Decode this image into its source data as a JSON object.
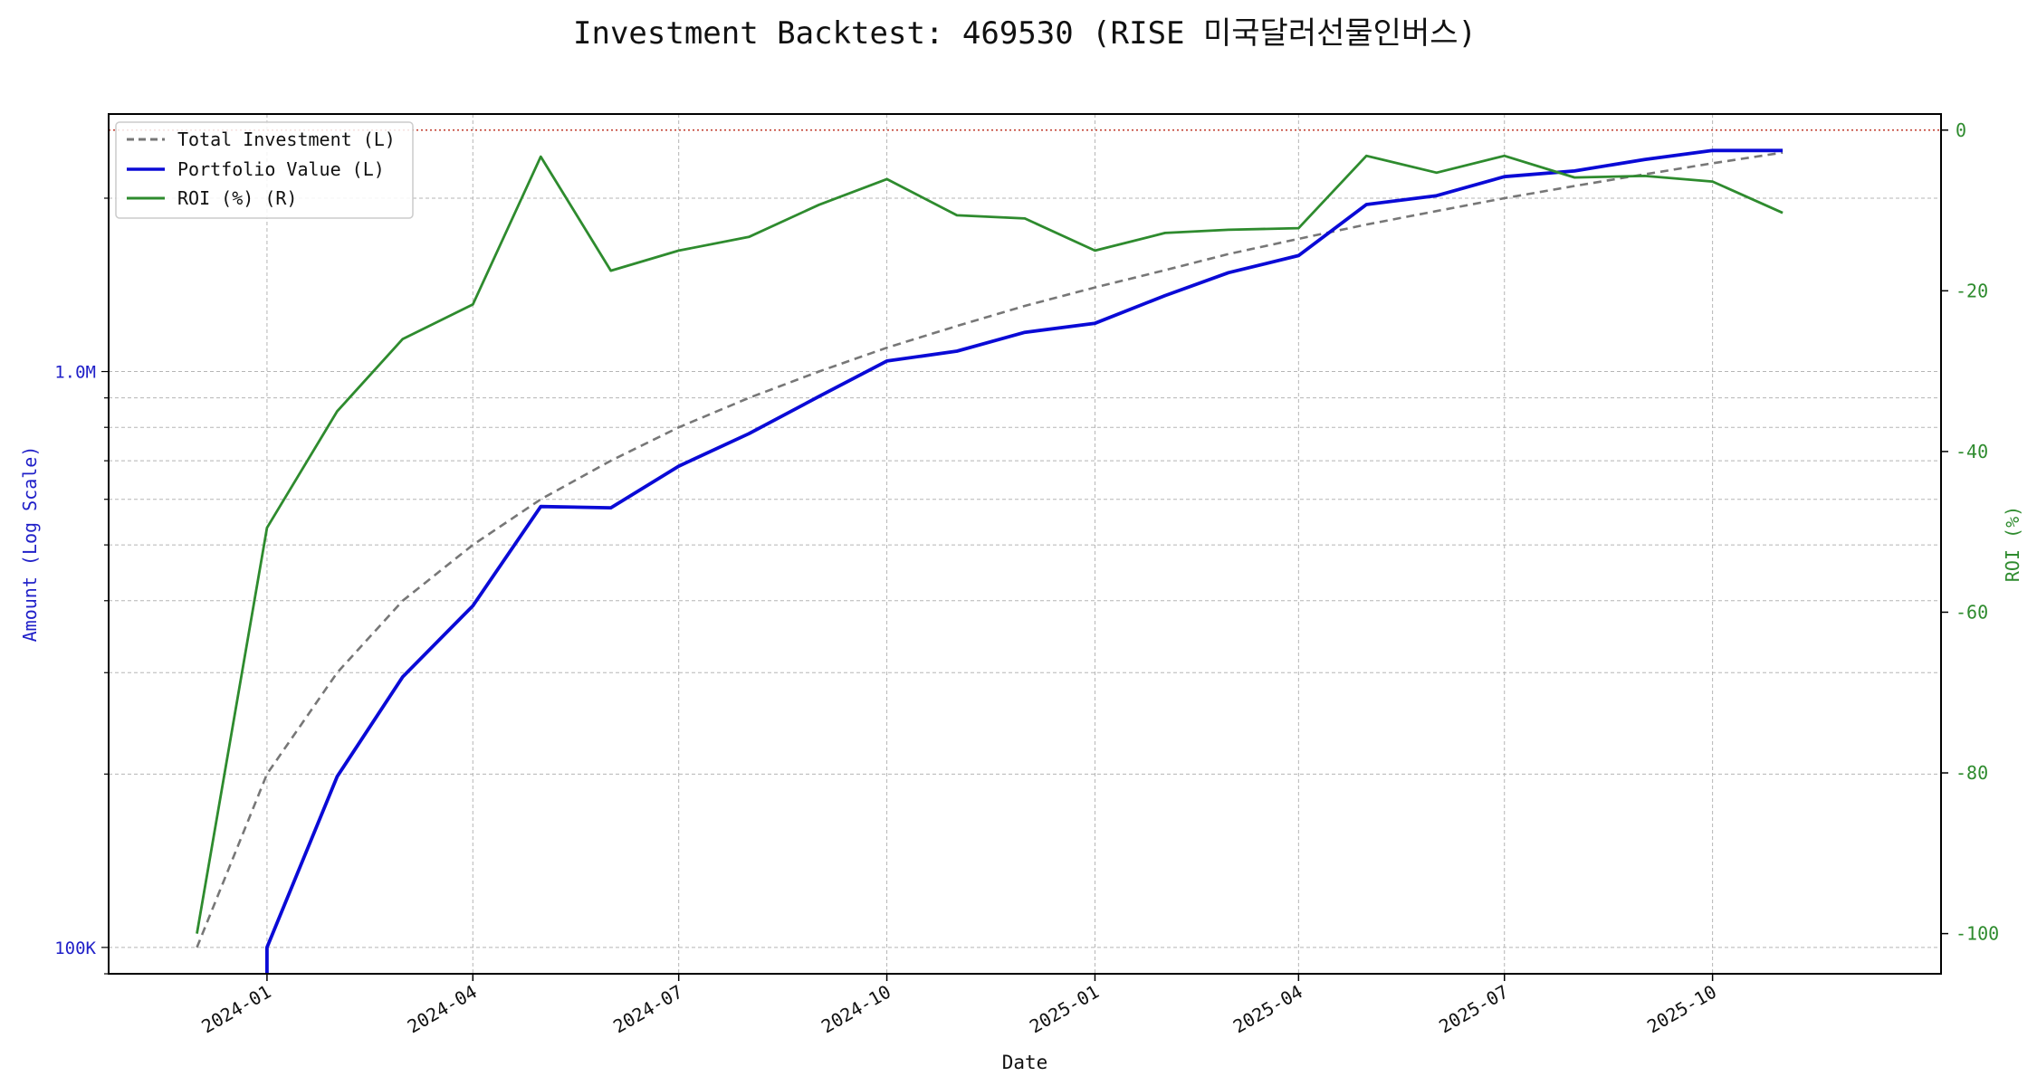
{
  "chart_data": {
    "type": "line",
    "title": "Investment Backtest: 469530 (RISE 미국달러선물인버스)",
    "xlabel": "Date",
    "ylabel_left": "Amount (Log Scale)",
    "ylabel_right": "ROI (%)",
    "yscale_left": "log",
    "ylim_left": [
      90000,
      2800000
    ],
    "ylim_right": [
      -105,
      2
    ],
    "xlim": [
      "2023-10-23",
      "2026-01-10"
    ],
    "x_ticks": [
      "2024-01",
      "2024-04",
      "2024-07",
      "2024-10",
      "2025-01",
      "2025-04",
      "2025-07",
      "2025-10"
    ],
    "y_ticks_left": [
      {
        "value": 100000,
        "label": "100K"
      },
      {
        "value": 1000000,
        "label": "1.0M"
      }
    ],
    "y_ticks_right": [
      0,
      -20,
      -40,
      -60,
      -80,
      -100
    ],
    "reference_line_right": 0,
    "grid": true,
    "legend_position": "upper-left",
    "legend": [
      {
        "label": "Total Investment (L)",
        "color": "#777777",
        "style": "dashed"
      },
      {
        "label": "Portfolio Value (L)",
        "color": "#0a0ad6",
        "style": "solid"
      },
      {
        "label": "ROI (%) (R)",
        "color": "#2e8b2e",
        "style": "solid"
      }
    ],
    "x": [
      "2023-12-01",
      "2024-01-01",
      "2024-02-01",
      "2024-03-01",
      "2024-04-01",
      "2024-05-01",
      "2024-06-01",
      "2024-07-01",
      "2024-08-01",
      "2024-09-01",
      "2024-10-01",
      "2024-11-01",
      "2024-12-01",
      "2025-01-01",
      "2025-02-01",
      "2025-03-01",
      "2025-04-01",
      "2025-05-01",
      "2025-06-01",
      "2025-07-01",
      "2025-08-01",
      "2025-09-01",
      "2025-10-01",
      "2025-11-01"
    ],
    "series": [
      {
        "name": "Total Investment (L)",
        "axis": "left",
        "values": [
          100000,
          200000,
          300000,
          400000,
          500000,
          600000,
          700000,
          800000,
          900000,
          1000000,
          1100000,
          1200000,
          1300000,
          1400000,
          1500000,
          1600000,
          1700000,
          1800000,
          1900000,
          2000000,
          2100000,
          2200000,
          2300000,
          2400000
        ]
      },
      {
        "name": "Portfolio Value (L)",
        "axis": "left",
        "values": [
          null,
          100000,
          198000,
          295000,
          392000,
          583000,
          580000,
          685000,
          780000,
          905000,
          1043000,
          1085000,
          1170000,
          1213000,
          1355000,
          1485000,
          1590000,
          1950000,
          2020000,
          2180000,
          2230000,
          2335000,
          2420000,
          2420000
        ]
      },
      {
        "name": "ROI (%) (R)",
        "axis": "right",
        "values": [
          -100,
          -49.5,
          -35,
          -26,
          -21.7,
          -3.3,
          -17.5,
          -15,
          -13.3,
          -9.3,
          -6.1,
          -10.6,
          -11,
          -15,
          -12.8,
          -12.4,
          -12.2,
          -3.2,
          -5.3,
          -3.2,
          -5.9,
          -5.7,
          -6.4,
          -10.3
        ]
      }
    ]
  }
}
